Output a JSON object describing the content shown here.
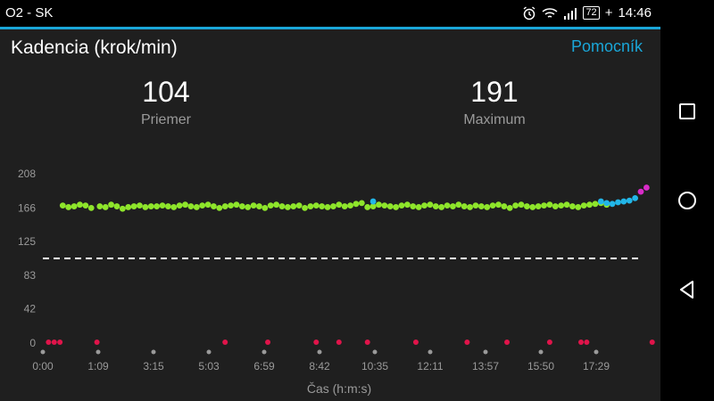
{
  "status": {
    "carrier": "O2 - SK",
    "battery": "72",
    "time": "14:46",
    "icons": [
      "alarm-icon",
      "wifi-icon",
      "signal-icon",
      "battery-icon"
    ]
  },
  "header": {
    "title": "Kadencia (krok/min)",
    "help_label": "Pomocník"
  },
  "stats": [
    {
      "value": "104",
      "label": "Priemer"
    },
    {
      "value": "191",
      "label": "Maximum"
    }
  ],
  "nav": {
    "icons": [
      "recents-icon",
      "home-icon",
      "back-icon"
    ]
  },
  "colors": {
    "accent": "#1aa6d8",
    "green": "#8ee52b",
    "cyan": "#22b6e8",
    "magenta": "#d92bc8",
    "red": "#e0144a"
  },
  "chart_data": {
    "type": "scatter",
    "title": "",
    "xlabel": "Čas (h:m:s)",
    "ylabel": "",
    "yticks": [
      0,
      42,
      83,
      125,
      166,
      208
    ],
    "xticks": [
      "0:00",
      "1:09",
      "3:15",
      "5:03",
      "6:59",
      "8:42",
      "10:35",
      "12:11",
      "13:57",
      "15:50",
      "17:29"
    ],
    "average_line": 104,
    "ylim": [
      0,
      208
    ],
    "xlim_minutes": [
      0,
      21
    ],
    "series": [
      {
        "color": "green",
        "x_minutes": [
          0.7,
          0.9,
          1.1,
          1.3,
          1.5,
          1.7,
          2.0,
          2.2,
          2.4,
          2.6,
          2.8,
          3.0,
          3.2,
          3.4,
          3.6,
          3.8,
          4.0,
          4.2,
          4.4,
          4.6,
          4.8,
          5.0,
          5.2,
          5.4,
          5.6,
          5.8,
          6.0,
          6.2,
          6.4,
          6.6,
          6.8,
          7.0,
          7.2,
          7.4,
          7.6,
          7.8,
          8.0,
          8.2,
          8.4,
          8.6,
          8.8,
          9.0,
          9.2,
          9.4,
          9.6,
          9.8,
          10.0,
          10.2,
          10.4,
          10.6,
          10.8,
          11.0,
          11.2,
          11.4,
          11.6,
          11.8,
          12.0,
          12.2,
          12.4,
          12.6,
          12.8,
          13.0,
          13.2,
          13.4,
          13.6,
          13.8,
          14.0,
          14.2,
          14.4,
          14.6,
          14.8,
          15.0,
          15.2,
          15.4,
          15.6,
          15.8,
          16.0,
          16.2,
          16.4,
          16.6,
          16.8,
          17.0,
          17.2,
          17.4,
          17.6,
          17.8,
          18.0,
          18.2,
          18.4,
          18.6,
          18.8,
          19.0,
          19.2,
          19.4,
          19.6,
          19.8
        ],
        "y": [
          169,
          167,
          168,
          170,
          169,
          166,
          168,
          167,
          170,
          168,
          165,
          167,
          168,
          169,
          167,
          168,
          168,
          169,
          168,
          167,
          169,
          170,
          168,
          167,
          169,
          170,
          168,
          166,
          168,
          169,
          170,
          168,
          167,
          169,
          168,
          166,
          169,
          170,
          168,
          167,
          168,
          169,
          166,
          168,
          169,
          168,
          167,
          168,
          170,
          168,
          169,
          171,
          172,
          167,
          168,
          170,
          169,
          168,
          167,
          169,
          170,
          168,
          167,
          169,
          170,
          168,
          167,
          169,
          168,
          170,
          168,
          167,
          169,
          168,
          167,
          169,
          170,
          168,
          166,
          169,
          170,
          168,
          167,
          168,
          169,
          170,
          168,
          169,
          170,
          168,
          167,
          169,
          170,
          171,
          172,
          170
        ]
      },
      {
        "color": "cyan",
        "x_minutes": [
          11.6,
          19.6,
          19.8,
          20.0,
          20.2,
          20.4,
          20.6,
          20.8
        ],
        "y": [
          174,
          174,
          172,
          171,
          173,
          174,
          175,
          178
        ]
      },
      {
        "color": "magenta",
        "x_minutes": [
          21.0,
          21.2
        ],
        "y": [
          186,
          191
        ]
      },
      {
        "color": "red",
        "x_minutes": [
          0.2,
          0.4,
          0.6,
          1.9,
          6.4,
          7.9,
          9.6,
          10.4,
          11.4,
          13.1,
          14.9,
          16.3,
          17.8,
          18.9,
          19.1,
          21.4
        ],
        "y": [
          0,
          0,
          0,
          0,
          0,
          0,
          0,
          0,
          0,
          0,
          0,
          0,
          0,
          0,
          0,
          0
        ]
      }
    ]
  }
}
